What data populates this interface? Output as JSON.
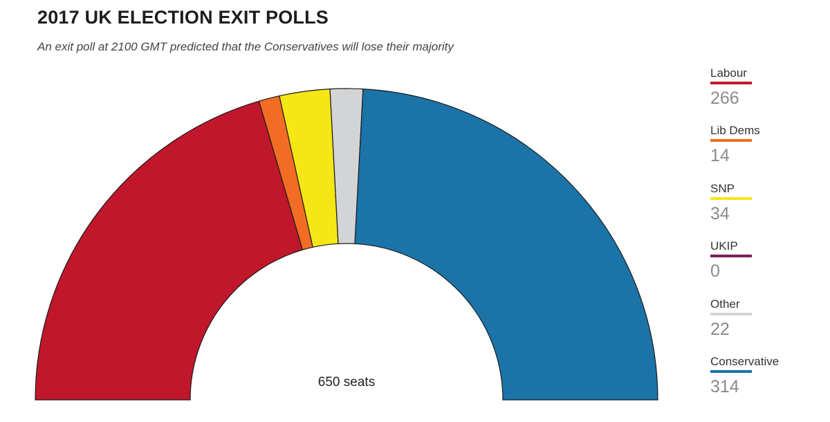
{
  "title": "2017 UK ELECTION EXIT POLLS",
  "subtitle": "An exit poll at 2100 GMT predicted that the Conservatives will lose their majority",
  "chart_data": {
    "type": "pie",
    "shape": "half-donut",
    "center_label": "650 seats",
    "total": 650,
    "series": [
      {
        "name": "Labour",
        "value": 266,
        "display": "266",
        "color": "#c1172b"
      },
      {
        "name": "Lib Dems",
        "value": 14,
        "display": "14",
        "color": "#f26d23"
      },
      {
        "name": "SNP",
        "value": 34,
        "display": "34",
        "color": "#f5e615"
      },
      {
        "name": "UKIP",
        "value": 0,
        "display": "0",
        "color": "#7b1f5a"
      },
      {
        "name": "Other",
        "value": 22,
        "display": "22",
        "color": "#d3d4d6"
      },
      {
        "name": "Conservative",
        "value": 314,
        "display": "314",
        "color": "#1b73a8"
      }
    ],
    "legend_position": "right"
  }
}
